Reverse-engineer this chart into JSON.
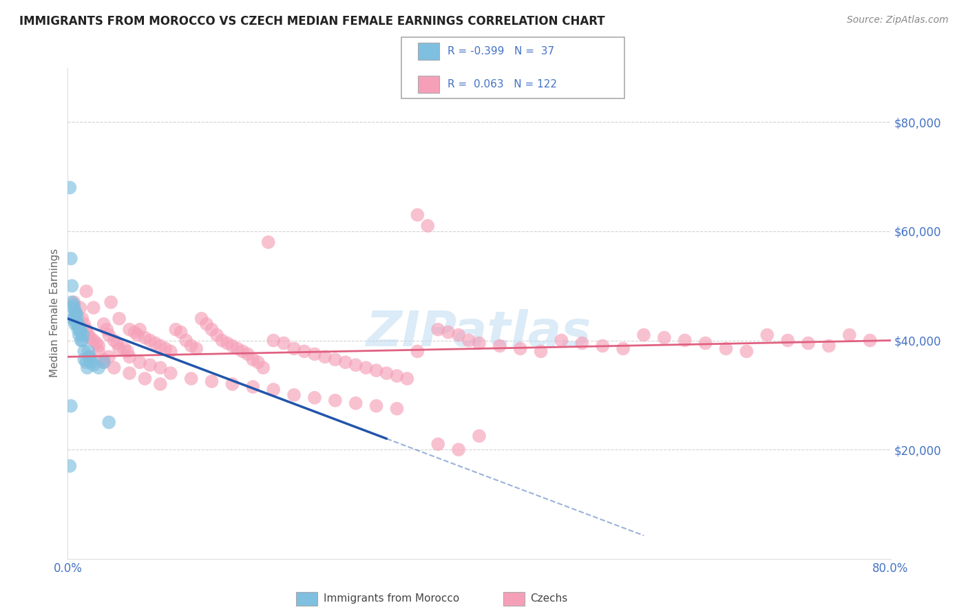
{
  "title": "IMMIGRANTS FROM MOROCCO VS CZECH MEDIAN FEMALE EARNINGS CORRELATION CHART",
  "source": "Source: ZipAtlas.com",
  "ylabel": "Median Female Earnings",
  "xlim": [
    0.0,
    0.8
  ],
  "ylim": [
    0,
    90000
  ],
  "yticks": [
    20000,
    40000,
    60000,
    80000
  ],
  "ytick_labels": [
    "$20,000",
    "$40,000",
    "$60,000",
    "$80,000"
  ],
  "xticks": [
    0.0,
    0.2,
    0.4,
    0.6,
    0.8
  ],
  "xtick_labels": [
    "0.0%",
    "",
    "",
    "",
    "80.0%"
  ],
  "legend1_text": "R = -0.399   N =  37",
  "legend2_text": "R =  0.063   N = 122",
  "legend_bottom_label1": "Immigrants from Morocco",
  "legend_bottom_label2": "Czechs",
  "blue_color": "#7fbfdf",
  "pink_color": "#f5a0b8",
  "blue_line_color": "#2255aa",
  "pink_line_color": "#e06080",
  "watermark": "ZIPatlas",
  "background_color": "#ffffff",
  "grid_color": "#c8c8c8",
  "title_color": "#222222",
  "source_color": "#888888",
  "tick_color": "#4472c4",
  "ylabel_color": "#666666",
  "blue_scatter_x": [
    0.002,
    0.003,
    0.004,
    0.004,
    0.005,
    0.005,
    0.006,
    0.006,
    0.007,
    0.007,
    0.008,
    0.008,
    0.009,
    0.009,
    0.01,
    0.01,
    0.011,
    0.011,
    0.012,
    0.013,
    0.013,
    0.014,
    0.015,
    0.016,
    0.016,
    0.018,
    0.019,
    0.02,
    0.021,
    0.022,
    0.023,
    0.025,
    0.03,
    0.035,
    0.04,
    0.003,
    0.002
  ],
  "blue_scatter_y": [
    68000,
    55000,
    50000,
    47000,
    46000,
    44000,
    46500,
    44000,
    45500,
    43000,
    45000,
    43500,
    44500,
    43000,
    43000,
    42000,
    42500,
    41000,
    42000,
    41500,
    40000,
    40000,
    41000,
    38000,
    36500,
    36000,
    35000,
    38000,
    37000,
    36500,
    36000,
    35500,
    35000,
    36000,
    25000,
    28000,
    17000
  ],
  "pink_scatter_x": [
    0.006,
    0.008,
    0.01,
    0.012,
    0.014,
    0.016,
    0.018,
    0.02,
    0.022,
    0.025,
    0.028,
    0.03,
    0.035,
    0.038,
    0.04,
    0.042,
    0.045,
    0.048,
    0.05,
    0.055,
    0.058,
    0.06,
    0.065,
    0.068,
    0.07,
    0.075,
    0.08,
    0.085,
    0.09,
    0.095,
    0.1,
    0.105,
    0.11,
    0.115,
    0.12,
    0.125,
    0.13,
    0.135,
    0.14,
    0.145,
    0.15,
    0.155,
    0.16,
    0.165,
    0.17,
    0.175,
    0.18,
    0.185,
    0.19,
    0.195,
    0.2,
    0.21,
    0.22,
    0.23,
    0.24,
    0.25,
    0.26,
    0.27,
    0.28,
    0.29,
    0.3,
    0.31,
    0.32,
    0.33,
    0.34,
    0.35,
    0.36,
    0.37,
    0.38,
    0.39,
    0.4,
    0.42,
    0.44,
    0.46,
    0.48,
    0.5,
    0.52,
    0.54,
    0.56,
    0.58,
    0.6,
    0.62,
    0.64,
    0.66,
    0.68,
    0.7,
    0.72,
    0.74,
    0.76,
    0.78,
    0.018,
    0.025,
    0.03,
    0.035,
    0.04,
    0.05,
    0.06,
    0.07,
    0.08,
    0.09,
    0.1,
    0.12,
    0.14,
    0.16,
    0.18,
    0.2,
    0.22,
    0.24,
    0.26,
    0.28,
    0.3,
    0.32,
    0.34,
    0.36,
    0.38,
    0.4,
    0.022,
    0.035,
    0.045,
    0.06,
    0.075,
    0.09
  ],
  "pink_scatter_y": [
    47000,
    45000,
    43000,
    46000,
    44000,
    43000,
    42000,
    41000,
    40500,
    40000,
    39500,
    39000,
    43000,
    42000,
    41000,
    47000,
    40000,
    39500,
    44000,
    38500,
    38000,
    42000,
    41500,
    41000,
    42000,
    40500,
    40000,
    39500,
    39000,
    38500,
    38000,
    42000,
    41500,
    40000,
    39000,
    38500,
    44000,
    43000,
    42000,
    41000,
    40000,
    39500,
    39000,
    38500,
    38000,
    37500,
    36500,
    36000,
    35000,
    58000,
    40000,
    39500,
    38500,
    38000,
    37500,
    37000,
    36500,
    36000,
    35500,
    35000,
    34500,
    34000,
    33500,
    33000,
    63000,
    61000,
    42000,
    41500,
    41000,
    40000,
    39500,
    39000,
    38500,
    38000,
    40000,
    39500,
    39000,
    38500,
    41000,
    40500,
    40000,
    39500,
    38500,
    38000,
    41000,
    40000,
    39500,
    39000,
    41000,
    40000,
    49000,
    46000,
    38000,
    36500,
    37000,
    38500,
    37000,
    36000,
    35500,
    35000,
    34000,
    33000,
    32500,
    32000,
    31500,
    31000,
    30000,
    29500,
    29000,
    28500,
    28000,
    27500,
    38000,
    21000,
    20000,
    22500,
    37000,
    36000,
    35000,
    34000,
    33000,
    32000
  ]
}
